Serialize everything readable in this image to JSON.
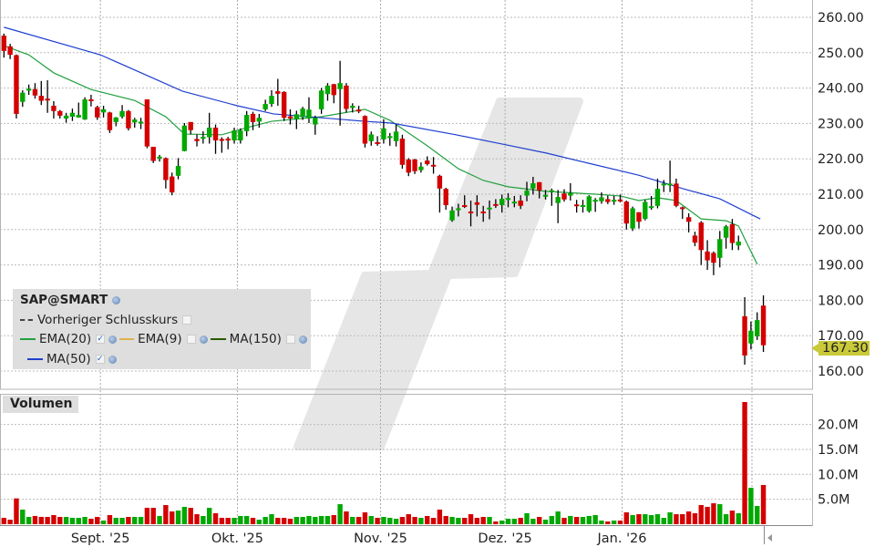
{
  "legend": {
    "symbol": "SAP@SMART",
    "prev_close": "Vorheriger Schlusskurs",
    "ema20": "EMA(20)",
    "ema9": "EMA(9)",
    "ma150": "MA(150)",
    "ma50": "MA(50)",
    "ema20_checked": true,
    "ema9_checked": false,
    "ma150_checked": false,
    "ma50_checked": true,
    "prev_close_checked": false
  },
  "volume_title": "Volumen",
  "last_price": "167.30",
  "colors": {
    "up": "#00a800",
    "down": "#d40000",
    "ema20": "#22a040",
    "ma50": "#1f3fd0",
    "ema9": "#e0a840",
    "ma150": "#2a5a00",
    "last_price_bg": "#c9c93a",
    "watermark": "#e6e6e6"
  },
  "chart_data": {
    "type": "candlestick",
    "price_axis": {
      "ticks": [
        "260.00",
        "250.00",
        "240.00",
        "230.00",
        "220.00",
        "210.00",
        "200.00",
        "190.00",
        "180.00",
        "170.00",
        "160.00"
      ],
      "range": [
        155,
        262
      ]
    },
    "volume_axis": {
      "ticks": [
        "20.0M",
        "15.0M",
        "10.0M",
        "5.0M"
      ],
      "tick_values": [
        20,
        15,
        10,
        5
      ],
      "unit": "M"
    },
    "x_labels": [
      "Sept. '25",
      "Okt. '25",
      "Nov. '25",
      "Dez. '25",
      "Jan. '26"
    ],
    "x_label_candle_index": [
      15.5,
      37.5,
      60.5,
      80.5,
      99.3
    ],
    "grid": true,
    "ohlc": [
      [
        254.8,
        255.4,
        248.6,
        250.5
      ],
      [
        251.8,
        252.5,
        248.2,
        249.4
      ],
      [
        249.3,
        249.5,
        231.4,
        232.7
      ],
      [
        236.1,
        239.4,
        234.7,
        238.7
      ],
      [
        239.4,
        241,
        238.1,
        239.8
      ],
      [
        239.7,
        241.4,
        237,
        237.9
      ],
      [
        237.8,
        242,
        235.2,
        236.4
      ],
      [
        237,
        242.2,
        233,
        236.5
      ],
      [
        235,
        236.3,
        231.4,
        233.5
      ],
      [
        233.5,
        233.8,
        231.4,
        232.2
      ],
      [
        231.4,
        233,
        230.2,
        232.2
      ],
      [
        231.9,
        234.2,
        230.7,
        233
      ],
      [
        231.7,
        235.9,
        231.6,
        232.4
      ],
      [
        231.1,
        237.4,
        231,
        236.8
      ],
      [
        236.8,
        238.1,
        234.8,
        236.3
      ],
      [
        234.6,
        235,
        231,
        231.7
      ],
      [
        233.1,
        235,
        231.7,
        234
      ],
      [
        233.1,
        233.3,
        227.3,
        228.1
      ],
      [
        230.4,
        231.8,
        229.2,
        231.7
      ],
      [
        231.9,
        235.2,
        231.4,
        233.5
      ],
      [
        233.5,
        233.8,
        228,
        228.6
      ],
      [
        230.3,
        231.6,
        228.8,
        231.1
      ],
      [
        230.3,
        231.6,
        228.4,
        230.5
      ],
      [
        236.8,
        236.8,
        223,
        223.5
      ],
      [
        223.4,
        223.4,
        218.8,
        219.4
      ],
      [
        220.2,
        221.1,
        219.2,
        220.6
      ],
      [
        220.2,
        220.4,
        211.6,
        214
      ],
      [
        215,
        216.1,
        209.7,
        210.5
      ],
      [
        215.2,
        220.2,
        214.2,
        218
      ],
      [
        222.2,
        230.1,
        222.1,
        229.4
      ],
      [
        230.4,
        230.4,
        226.9,
        228.1
      ],
      [
        225.6,
        226.9,
        223.5,
        225
      ],
      [
        226.1,
        227.8,
        224.3,
        226.2
      ],
      [
        226.1,
        233,
        224.3,
        228.8
      ],
      [
        228.8,
        229.7,
        221.4,
        225.2
      ],
      [
        225.6,
        226.1,
        221.7,
        225.2
      ],
      [
        225.7,
        226.2,
        222.7,
        225.2
      ],
      [
        225.2,
        228.8,
        224.3,
        228
      ],
      [
        225.2,
        228.6,
        224.3,
        228
      ],
      [
        227.8,
        233.5,
        226.4,
        232.4
      ],
      [
        232.7,
        233.3,
        228.1,
        230.4
      ],
      [
        230.5,
        232.7,
        228.8,
        231.6
      ],
      [
        234,
        236.7,
        233.5,
        235.5
      ],
      [
        235.5,
        239.4,
        234.7,
        237.8
      ],
      [
        239.1,
        242.6,
        235,
        238.4
      ],
      [
        238.9,
        239.1,
        230.7,
        231.6
      ],
      [
        232,
        234,
        229.7,
        231.4
      ],
      [
        231.2,
        233.6,
        228.4,
        232.6
      ],
      [
        231.8,
        234.7,
        231,
        234.2
      ],
      [
        231.4,
        237.4,
        230.1,
        233.9
      ],
      [
        229.7,
        232.2,
        226.8,
        231.6
      ],
      [
        234,
        240,
        232.7,
        239.3
      ],
      [
        238.3,
        241.4,
        236.4,
        240.7
      ],
      [
        241.1,
        241.2,
        235.7,
        238
      ],
      [
        239.7,
        247.7,
        229.4,
        241.4
      ],
      [
        240.7,
        241.4,
        233.1,
        234.1
      ],
      [
        234.4,
        235.7,
        233.1,
        235
      ],
      [
        233.9,
        235,
        232.9,
        233.5
      ],
      [
        232.1,
        232.3,
        223.2,
        224.3
      ],
      [
        225,
        227.7,
        223.7,
        226.9
      ],
      [
        224.7,
        226.4,
        223.7,
        224.2
      ],
      [
        225.5,
        231.2,
        224.3,
        228.6
      ],
      [
        226,
        227.3,
        223.7,
        226.4
      ],
      [
        225,
        229.7,
        223.5,
        227.7
      ],
      [
        225.7,
        226.8,
        217.2,
        218.3
      ],
      [
        219.8,
        220.2,
        215.1,
        216.1
      ],
      [
        219.8,
        220,
        215.7,
        216.5
      ],
      [
        216.8,
        219,
        216.1,
        217.8
      ],
      [
        219.5,
        220.7,
        218.1,
        218.5
      ],
      [
        218.3,
        220.5,
        215.8,
        217.8
      ],
      [
        215.2,
        215.5,
        204.8,
        211.6
      ],
      [
        211.5,
        211.8,
        205.6,
        206.9
      ],
      [
        202.6,
        206.5,
        202.2,
        205.4
      ],
      [
        205.5,
        207.3,
        203.7,
        206
      ],
      [
        206.9,
        209.7,
        206.1,
        206.4
      ],
      [
        205.1,
        208.2,
        200.9,
        204.8
      ],
      [
        207.7,
        209.7,
        203.7,
        207
      ],
      [
        205.1,
        206.7,
        202.2,
        204.8
      ],
      [
        205.8,
        208.2,
        202.9,
        206.2
      ],
      [
        207.2,
        208.6,
        206.1,
        206.8
      ],
      [
        206.9,
        209.9,
        204.8,
        208.7
      ],
      [
        208.5,
        210.3,
        206.3,
        208.9
      ],
      [
        207.6,
        209.5,
        206.3,
        207.9
      ],
      [
        208.2,
        209.7,
        205.8,
        206.7
      ],
      [
        209.6,
        213.5,
        208,
        211
      ],
      [
        211.6,
        214.9,
        209.9,
        213.1
      ],
      [
        213.4,
        213.4,
        208.8,
        211
      ],
      [
        209.4,
        211.2,
        208.5,
        209.8
      ],
      [
        210.8,
        211.6,
        206.7,
        211.1
      ],
      [
        207.5,
        211.2,
        201.8,
        209.2
      ],
      [
        210.2,
        211.4,
        207.9,
        208.5
      ],
      [
        209.6,
        213.1,
        208.2,
        210.3
      ],
      [
        207.1,
        208.4,
        204.8,
        206.7
      ],
      [
        206.5,
        208.4,
        204.8,
        206.9
      ],
      [
        205.2,
        209.7,
        204.8,
        209.4
      ],
      [
        207.9,
        208.9,
        205,
        208.4
      ],
      [
        208,
        210.5,
        207.3,
        209.1
      ],
      [
        208.6,
        209.6,
        207.2,
        207.8
      ],
      [
        208,
        209.5,
        207,
        208.4
      ],
      [
        208.5,
        209.9,
        207.7,
        208.2
      ],
      [
        207.9,
        208.2,
        200,
        201.7
      ],
      [
        200.3,
        206.5,
        199.6,
        206
      ],
      [
        204.9,
        204.9,
        200.3,
        202.2
      ],
      [
        203,
        208.4,
        202.6,
        207.8
      ],
      [
        206.2,
        209.5,
        205.6,
        206.6
      ],
      [
        206.7,
        214.4,
        206,
        211.5
      ],
      [
        212.5,
        214,
        210.6,
        213
      ],
      [
        212.5,
        219.5,
        210.6,
        213
      ],
      [
        213,
        214.4,
        206.3,
        206.7
      ],
      [
        206.3,
        206.5,
        203,
        205.9
      ],
      [
        203.5,
        204.6,
        199.2,
        202.2
      ],
      [
        198.3,
        199.4,
        195.3,
        196.3
      ],
      [
        202,
        202.4,
        190,
        194.2
      ],
      [
        193.8,
        197,
        188.6,
        191.3
      ],
      [
        193.4,
        193.8,
        187.1,
        190.6
      ],
      [
        192,
        199.6,
        189.3,
        197.3
      ],
      [
        197.7,
        201.3,
        194.6,
        200.9
      ],
      [
        201.5,
        203,
        194.2,
        196.2
      ],
      [
        195.5,
        198.3,
        194.2,
        196.6
      ],
      [
        175.5,
        180.9,
        161.8,
        164.4
      ],
      [
        167.8,
        174,
        166.1,
        171.4
      ],
      [
        169.8,
        176.6,
        168.8,
        174.4
      ],
      [
        178.5,
        181.4,
        165.4,
        167.3
      ]
    ],
    "volume_m": [
      1.28,
      0.91,
      5.18,
      2.93,
      1.46,
      1.65,
      1.46,
      1.46,
      1.83,
      1.46,
      1.46,
      1.28,
      1.28,
      1.46,
      1.1,
      1.46,
      0.73,
      1.83,
      1.28,
      1.28,
      1.46,
      1.46,
      1.46,
      3.29,
      3.29,
      1.65,
      3.84,
      2.56,
      2.74,
      3.48,
      3.29,
      2.01,
      1.65,
      3.29,
      2.2,
      1.28,
      1.28,
      1.28,
      1.65,
      1.65,
      1.28,
      0.91,
      1.46,
      2.01,
      1.28,
      1.28,
      1.1,
      1.46,
      1.46,
      1.65,
      1.46,
      1.65,
      1.65,
      1.83,
      4.02,
      2.56,
      1.46,
      1.46,
      2.38,
      1.65,
      1.28,
      1.46,
      1.28,
      1.1,
      1.46,
      2.01,
      1.46,
      1.28,
      1.65,
      1.28,
      2.93,
      1.65,
      1.46,
      1.28,
      1.28,
      2.01,
      1.28,
      1.46,
      1.46,
      0.55,
      0.73,
      1.1,
      1.1,
      1.28,
      2.2,
      1.1,
      1.46,
      0.91,
      1.65,
      2.56,
      1.28,
      1.65,
      1.46,
      1.46,
      1.65,
      1.83,
      0.73,
      0.55,
      0.73,
      0.73,
      2.38,
      1.83,
      2.01,
      2.01,
      1.83,
      2.01,
      1.28,
      2.38,
      2.01,
      2.01,
      2.56,
      2.2,
      3.84,
      3.48,
      4.2,
      4.02,
      2.01,
      2.74,
      2.2,
      24.5,
      7.3,
      3.66,
      7.87
    ],
    "series": [
      {
        "name": "EMA(20)",
        "points": [
          [
            0,
            252
          ],
          [
            4,
            249.4
          ],
          [
            8,
            244.3
          ],
          [
            14,
            239.6
          ],
          [
            21,
            236.5
          ],
          [
            26,
            231.9
          ],
          [
            29,
            227
          ],
          [
            35,
            226.8
          ],
          [
            39,
            228.8
          ],
          [
            43,
            230.6
          ],
          [
            51,
            231.9
          ],
          [
            58,
            234
          ],
          [
            62,
            230.9
          ],
          [
            68,
            223.7
          ],
          [
            73,
            217.2
          ],
          [
            77,
            213.9
          ],
          [
            81,
            212.1
          ],
          [
            87,
            210.8
          ],
          [
            95,
            210
          ],
          [
            99,
            209.5
          ],
          [
            102,
            208.2
          ],
          [
            105,
            209
          ],
          [
            108,
            208.2
          ],
          [
            112,
            203
          ],
          [
            116,
            202.5
          ],
          [
            118,
            201
          ],
          [
            121,
            190.2
          ]
        ]
      },
      {
        "name": "MA(50)",
        "points": [
          [
            0,
            257.2
          ],
          [
            15.5,
            249.4
          ],
          [
            28.7,
            239.1
          ],
          [
            37.5,
            235
          ],
          [
            43.3,
            232.7
          ],
          [
            58,
            230.6
          ],
          [
            62.3,
            230.1
          ],
          [
            72.6,
            226.8
          ],
          [
            80,
            224.2
          ],
          [
            87.2,
            221.6
          ],
          [
            94.5,
            218.5
          ],
          [
            101.9,
            215.4
          ],
          [
            109.2,
            211.5
          ],
          [
            115,
            208.7
          ],
          [
            121.5,
            203
          ]
        ]
      }
    ]
  }
}
